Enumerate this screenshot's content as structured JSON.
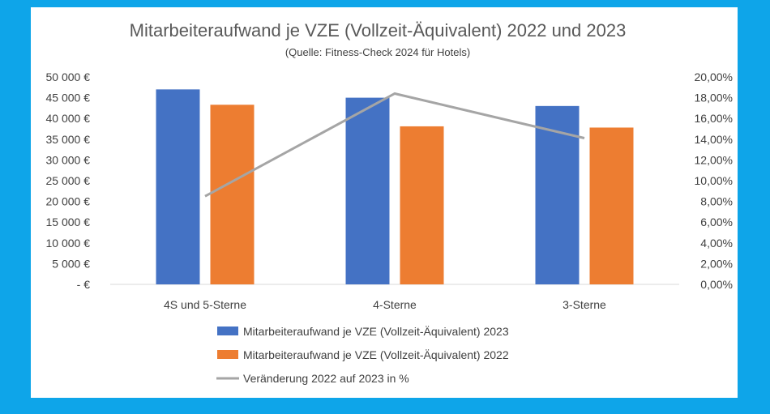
{
  "chart_data": {
    "type": "bar",
    "title": "Mitarbeiteraufwand je VZE (Vollzeit-Äquivalent) 2022 und 2023",
    "subtitle": "(Quelle: Fitness-Check  2024 für Hotels)",
    "categories": [
      "4S und 5-Sterne",
      "4-Sterne",
      "3-Sterne"
    ],
    "series": [
      {
        "name": "Mitarbeiteraufwand je VZE (Vollzeit-Äquivalent) 2023",
        "kind": "bar",
        "axis": "left",
        "color": "#4472c4",
        "values": [
          47000,
          45000,
          43000
        ]
      },
      {
        "name": "Mitarbeiteraufwand je VZE (Vollzeit-Äquivalent) 2022",
        "kind": "bar",
        "axis": "left",
        "color": "#ed7d31",
        "values": [
          43300,
          38100,
          37800
        ]
      },
      {
        "name": "Veränderung 2022 auf 2023 in %",
        "kind": "line",
        "axis": "right",
        "color": "#a5a5a5",
        "values": [
          8.5,
          18.4,
          14.1
        ]
      }
    ],
    "y_left": {
      "ylim": [
        0,
        50000
      ],
      "ticks": [
        0,
        5000,
        10000,
        15000,
        20000,
        25000,
        30000,
        35000,
        40000,
        45000,
        50000
      ],
      "tick_labels": [
        "-   €",
        "5 000 €",
        "10 000 €",
        "15 000 €",
        "20 000 €",
        "25 000 €",
        "30 000 €",
        "35 000 €",
        "40 000 €",
        "45 000 €",
        "50 000 €"
      ]
    },
    "y_right": {
      "ylim": [
        0,
        20
      ],
      "ticks": [
        0,
        2,
        4,
        6,
        8,
        10,
        12,
        14,
        16,
        18,
        20
      ],
      "tick_labels": [
        "0,00%",
        "2,00%",
        "4,00%",
        "6,00%",
        "8,00%",
        "10,00%",
        "12,00%",
        "14,00%",
        "16,00%",
        "18,00%",
        "20,00%"
      ]
    },
    "grid": false,
    "legend_position": "bottom"
  }
}
